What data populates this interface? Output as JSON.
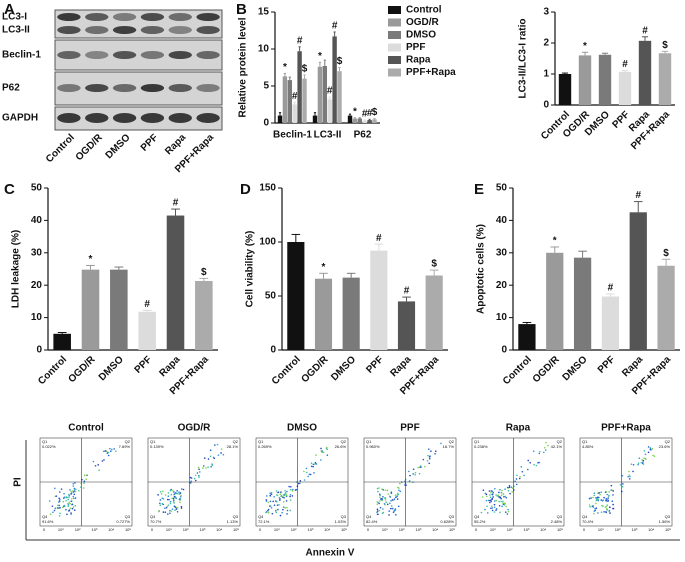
{
  "blot": {
    "panel": "A",
    "rows": [
      "LC3-I",
      "LC3-II",
      "Beclin-1",
      "P62",
      "GAPDH"
    ],
    "lanes": [
      "Control",
      "OGD/R",
      "DMSO",
      "PPF",
      "Rapa",
      "PPF+Rapa"
    ]
  },
  "chart_data": [
    {
      "type": "bar",
      "panel": "B",
      "ylabel": "Relative protein level",
      "categories": [
        "Beclin-1",
        "LC3-II",
        "P62"
      ],
      "ylim": [
        0,
        15
      ],
      "yticks": [
        0,
        5,
        10,
        15
      ],
      "series": [
        {
          "name": "Control",
          "color": "#111111",
          "values": [
            1.0,
            1.0,
            1.0
          ],
          "errors": [
            0.4,
            0.4,
            0.2
          ],
          "markers": [
            null,
            null,
            null
          ]
        },
        {
          "name": "OGD/R",
          "color": "#9a9a9a",
          "values": [
            6.3,
            7.6,
            0.6
          ],
          "errors": [
            0.4,
            0.6,
            0.1
          ],
          "markers": [
            "*",
            "*",
            "*"
          ]
        },
        {
          "name": "DMSO",
          "color": "#7a7a7a",
          "values": [
            5.8,
            7.7,
            0.6
          ],
          "errors": [
            0.4,
            0.8,
            0.1
          ],
          "markers": [
            null,
            null,
            null
          ]
        },
        {
          "name": "PPF",
          "color": "#dcdcdc",
          "values": [
            2.5,
            3.2,
            0.3
          ],
          "errors": [
            0.3,
            0.3,
            0.1
          ],
          "markers": [
            "#",
            "#",
            "#"
          ]
        },
        {
          "name": "Rapa",
          "color": "#555555",
          "values": [
            9.7,
            11.7,
            0.4
          ],
          "errors": [
            0.6,
            0.6,
            0.1
          ],
          "markers": [
            "#",
            "#",
            "#"
          ]
        },
        {
          "name": "PPF+Rapa",
          "color": "#ababab",
          "values": [
            6.0,
            7.0,
            0.5
          ],
          "errors": [
            0.5,
            0.5,
            0.1
          ],
          "markers": [
            "$",
            "$",
            "$"
          ]
        }
      ]
    },
    {
      "type": "bar",
      "ylabel": "LC3-II/LC3-I ratio",
      "categories": [
        "Control",
        "OGD/R",
        "DMSO",
        "PPF",
        "Rapa",
        "PPF+Rapa"
      ],
      "ylim": [
        0,
        3
      ],
      "yticks": [
        0,
        1,
        2,
        3
      ],
      "colors": [
        "#111111",
        "#9a9a9a",
        "#7a7a7a",
        "#dcdcdc",
        "#555555",
        "#ababab"
      ],
      "values": [
        1.0,
        1.6,
        1.62,
        1.07,
        2.07,
        1.67
      ],
      "errors": [
        0.03,
        0.1,
        0.05,
        0.04,
        0.13,
        0.06
      ],
      "markers": [
        null,
        "*",
        null,
        "#",
        "#",
        "$"
      ]
    },
    {
      "type": "bar",
      "panel": "C",
      "ylabel": "LDH leakage (%)",
      "categories": [
        "Control",
        "OGD/R",
        "DMSO",
        "PPF",
        "Rapa",
        "PPF+Rapa"
      ],
      "ylim": [
        0,
        50
      ],
      "yticks": [
        0,
        10,
        20,
        30,
        40,
        50
      ],
      "colors": [
        "#111111",
        "#9a9a9a",
        "#7a7a7a",
        "#dcdcdc",
        "#555555",
        "#ababab"
      ],
      "values": [
        5,
        24.8,
        24.8,
        11.8,
        41.5,
        21.3
      ],
      "errors": [
        0.4,
        1.3,
        0.8,
        0.4,
        2.0,
        0.8
      ],
      "markers": [
        null,
        "*",
        null,
        "#",
        "#",
        "$"
      ]
    },
    {
      "type": "bar",
      "panel": "D",
      "ylabel": "Cell viability (%)",
      "categories": [
        "Control",
        "OGD/R",
        "DMSO",
        "PPF",
        "Rapa",
        "PPF+Rapa"
      ],
      "ylim": [
        0,
        150
      ],
      "yticks": [
        0,
        50,
        100,
        150
      ],
      "colors": [
        "#111111",
        "#9a9a9a",
        "#7a7a7a",
        "#dcdcdc",
        "#555555",
        "#ababab"
      ],
      "values": [
        100,
        66,
        67,
        92,
        45,
        69
      ],
      "errors": [
        7,
        5,
        4,
        6,
        4,
        5
      ],
      "markers": [
        null,
        "*",
        null,
        "#",
        "#",
        "$"
      ]
    },
    {
      "type": "bar",
      "panel": "E",
      "ylabel": "Apoptotic cells (%)",
      "categories": [
        "Control",
        "OGD/R",
        "DMSO",
        "PPF",
        "Rapa",
        "PPF+Rapa"
      ],
      "ylim": [
        0,
        50
      ],
      "yticks": [
        0,
        10,
        20,
        30,
        40,
        50
      ],
      "colors": [
        "#111111",
        "#9a9a9a",
        "#7a7a7a",
        "#dcdcdc",
        "#555555",
        "#ababab"
      ],
      "values": [
        8,
        30,
        28.5,
        16.5,
        42.5,
        26
      ],
      "errors": [
        0.5,
        1.8,
        2.0,
        0.8,
        3.3,
        2.0
      ],
      "markers": [
        null,
        "*",
        null,
        "#",
        "#",
        "$"
      ]
    }
  ],
  "flow": {
    "ylabel": "PI",
    "xlabel": "Annexin V",
    "x_ticks": [
      "0",
      "10¹",
      "10²",
      "10³",
      "10⁴",
      "10⁵"
    ],
    "panels": [
      {
        "title": "Control",
        "quadrants": [
          {
            "name": "Q1",
            "value": "0.022%"
          },
          {
            "name": "Q2",
            "value": "7.69%"
          },
          {
            "name": "Q3",
            "value": "0.727%"
          },
          {
            "name": "Q4",
            "value": "91.6%"
          }
        ]
      },
      {
        "title": "OGD/R",
        "quadrants": [
          {
            "name": "Q1",
            "value": "0.139%"
          },
          {
            "name": "Q2",
            "value": "28.1%"
          },
          {
            "name": "Q3",
            "value": "1.13%"
          },
          {
            "name": "Q4",
            "value": "70.7%"
          }
        ]
      },
      {
        "title": "DMSO",
        "quadrants": [
          {
            "name": "Q1",
            "value": "0.269%"
          },
          {
            "name": "Q2",
            "value": "26.6%"
          },
          {
            "name": "Q3",
            "value": "1.03%"
          },
          {
            "name": "Q4",
            "value": "72.1%"
          }
        ]
      },
      {
        "title": "PPF",
        "quadrants": [
          {
            "name": "Q1",
            "value": "0.960%"
          },
          {
            "name": "Q2",
            "value": "16.7%"
          },
          {
            "name": "Q3",
            "value": "0.628%"
          },
          {
            "name": "Q4",
            "value": "82.4%"
          }
        ]
      },
      {
        "title": "Rapa",
        "quadrants": [
          {
            "name": "Q1",
            "value": "0.238%"
          },
          {
            "name": "Q2",
            "value": "42.1%"
          },
          {
            "name": "Q3",
            "value": "2.48%"
          },
          {
            "name": "Q4",
            "value": "55.2%"
          }
        ]
      },
      {
        "title": "PPF+Rapa",
        "quadrants": [
          {
            "name": "Q1",
            "value": "4.85%"
          },
          {
            "name": "Q2",
            "value": "23.6%"
          },
          {
            "name": "Q3",
            "value": "1.56%"
          },
          {
            "name": "Q4",
            "value": "70.4%"
          }
        ]
      }
    ]
  }
}
